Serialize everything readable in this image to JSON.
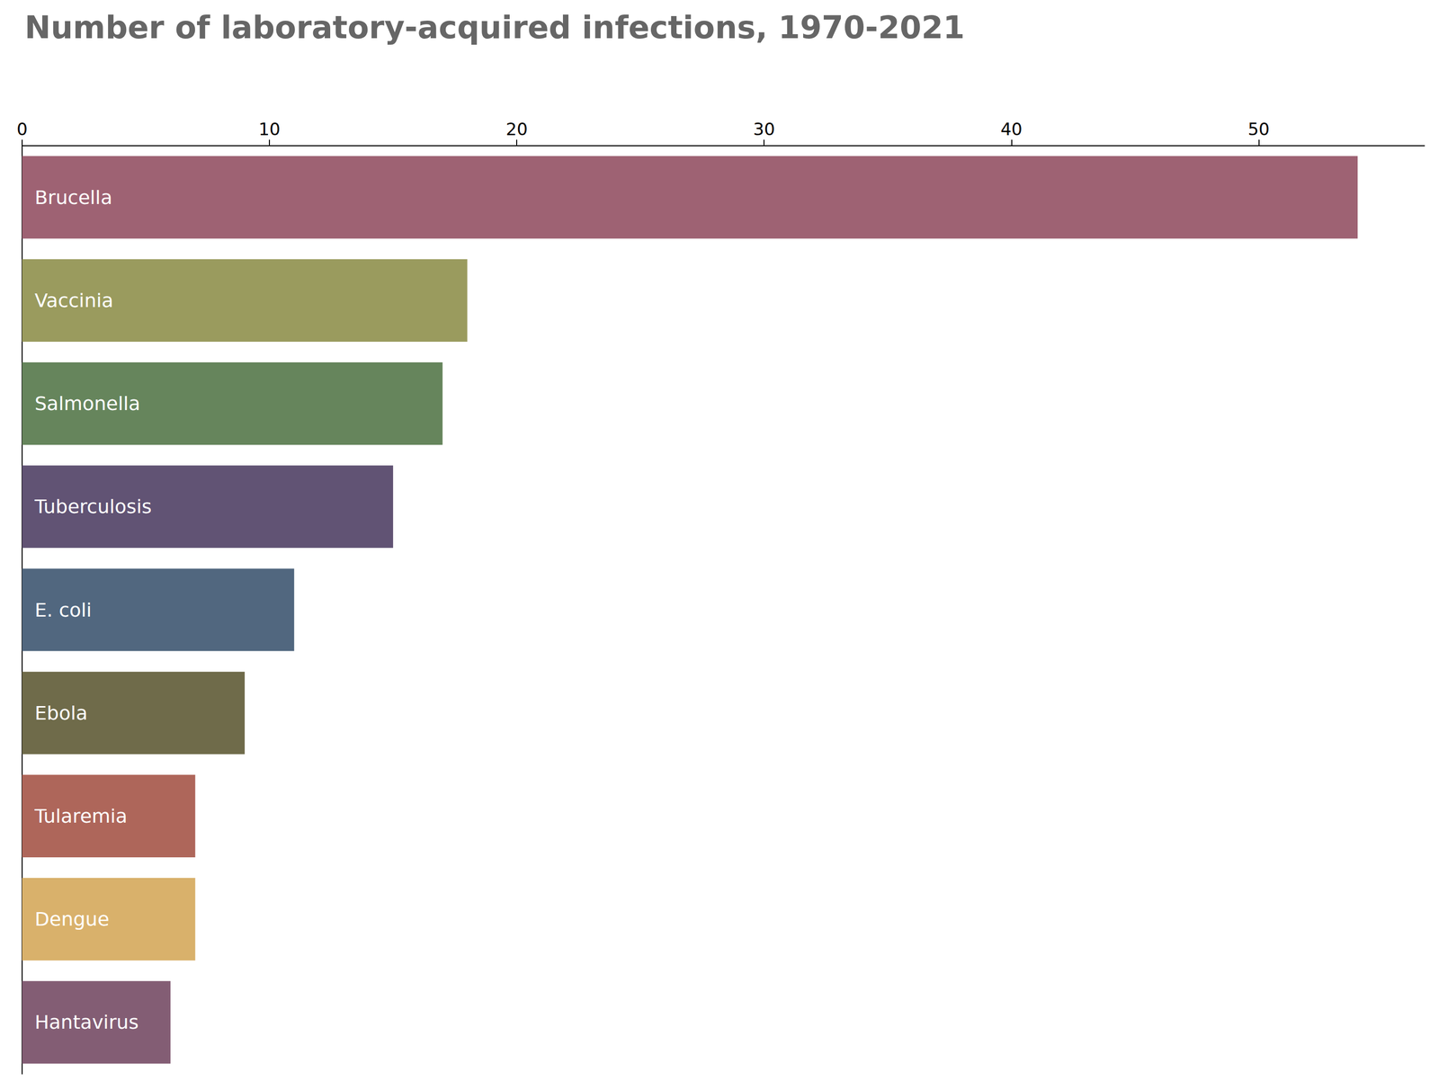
{
  "chart_data": {
    "type": "bar",
    "orientation": "horizontal",
    "title": "Number of laboratory-acquired infections, 1970-2021",
    "categories": [
      "Brucella",
      "Vaccinia",
      "Salmonella",
      "Tuberculosis",
      "E. coli",
      "Ebola",
      "Tularemia",
      "Dengue",
      "Hantavirus"
    ],
    "values": [
      54,
      18,
      17,
      15,
      11,
      9,
      7,
      7,
      6
    ],
    "colors": [
      "#9e6273",
      "#9a9b5e",
      "#66855c",
      "#615374",
      "#51677f",
      "#6f6b4a",
      "#ae665a",
      "#d9b16b",
      "#835d74"
    ],
    "xlim": [
      0,
      56.7
    ],
    "xticks": [
      0,
      10,
      20,
      30,
      40,
      50
    ],
    "grid": false,
    "tick_labels": "x"
  }
}
